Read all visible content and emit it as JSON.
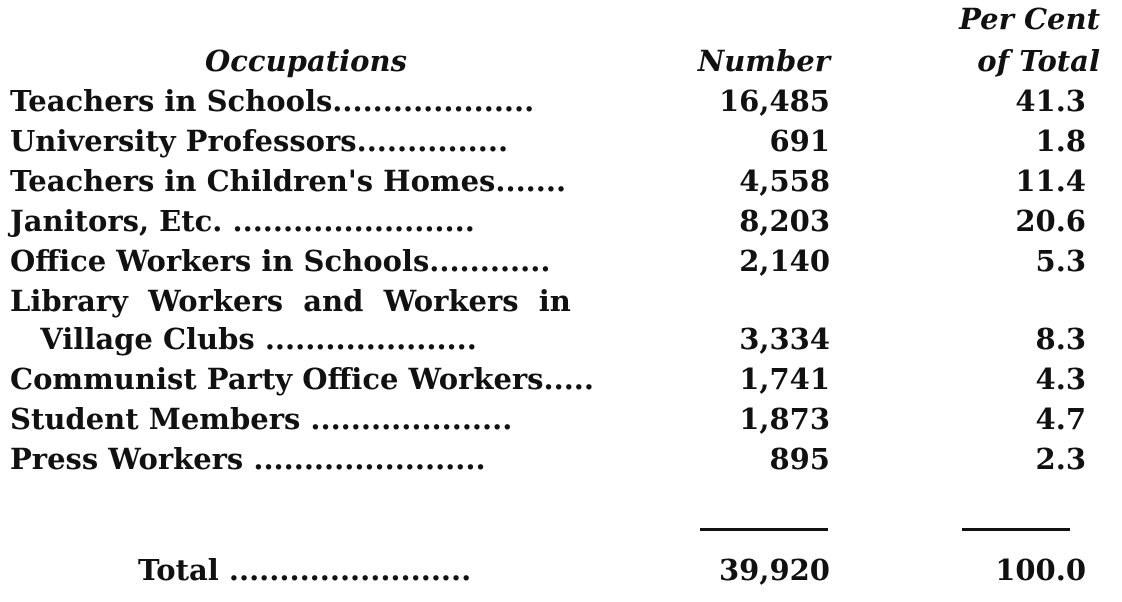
{
  "headers": {
    "occupations": "Occupations",
    "number": "Number",
    "per_cent_line1": "Per Cent",
    "per_cent_line2": "of Total"
  },
  "rows": [
    {
      "label": "Teachers in Schools....................",
      "number": "16,485",
      "percent": "41.3"
    },
    {
      "label": "University Professors...............",
      "number": "691",
      "percent": "1.8"
    },
    {
      "label": "Teachers in Children's Homes.......",
      "number": "4,558",
      "percent": "11.4"
    },
    {
      "label": "Janitors, Etc. ........................",
      "number": "8,203",
      "percent": "20.6"
    },
    {
      "label": "Office Workers in Schools............",
      "number": "2,140",
      "percent": "5.3"
    },
    {
      "label": "Library  Workers  and  Workers  in",
      "number": "",
      "percent": ""
    },
    {
      "label": "   Village Clubs .....................",
      "number": "3,334",
      "percent": "8.3"
    },
    {
      "label": "Communist Party Office Workers.....",
      "number": "1,741",
      "percent": "4.3"
    },
    {
      "label": "Student Members ....................",
      "number": "1,873",
      "percent": "4.7"
    },
    {
      "label": "Press Workers .......................",
      "number": "895",
      "percent": "2.3"
    }
  ],
  "total": {
    "label": "Total ........................",
    "number": "39,920",
    "percent": "100.0"
  }
}
